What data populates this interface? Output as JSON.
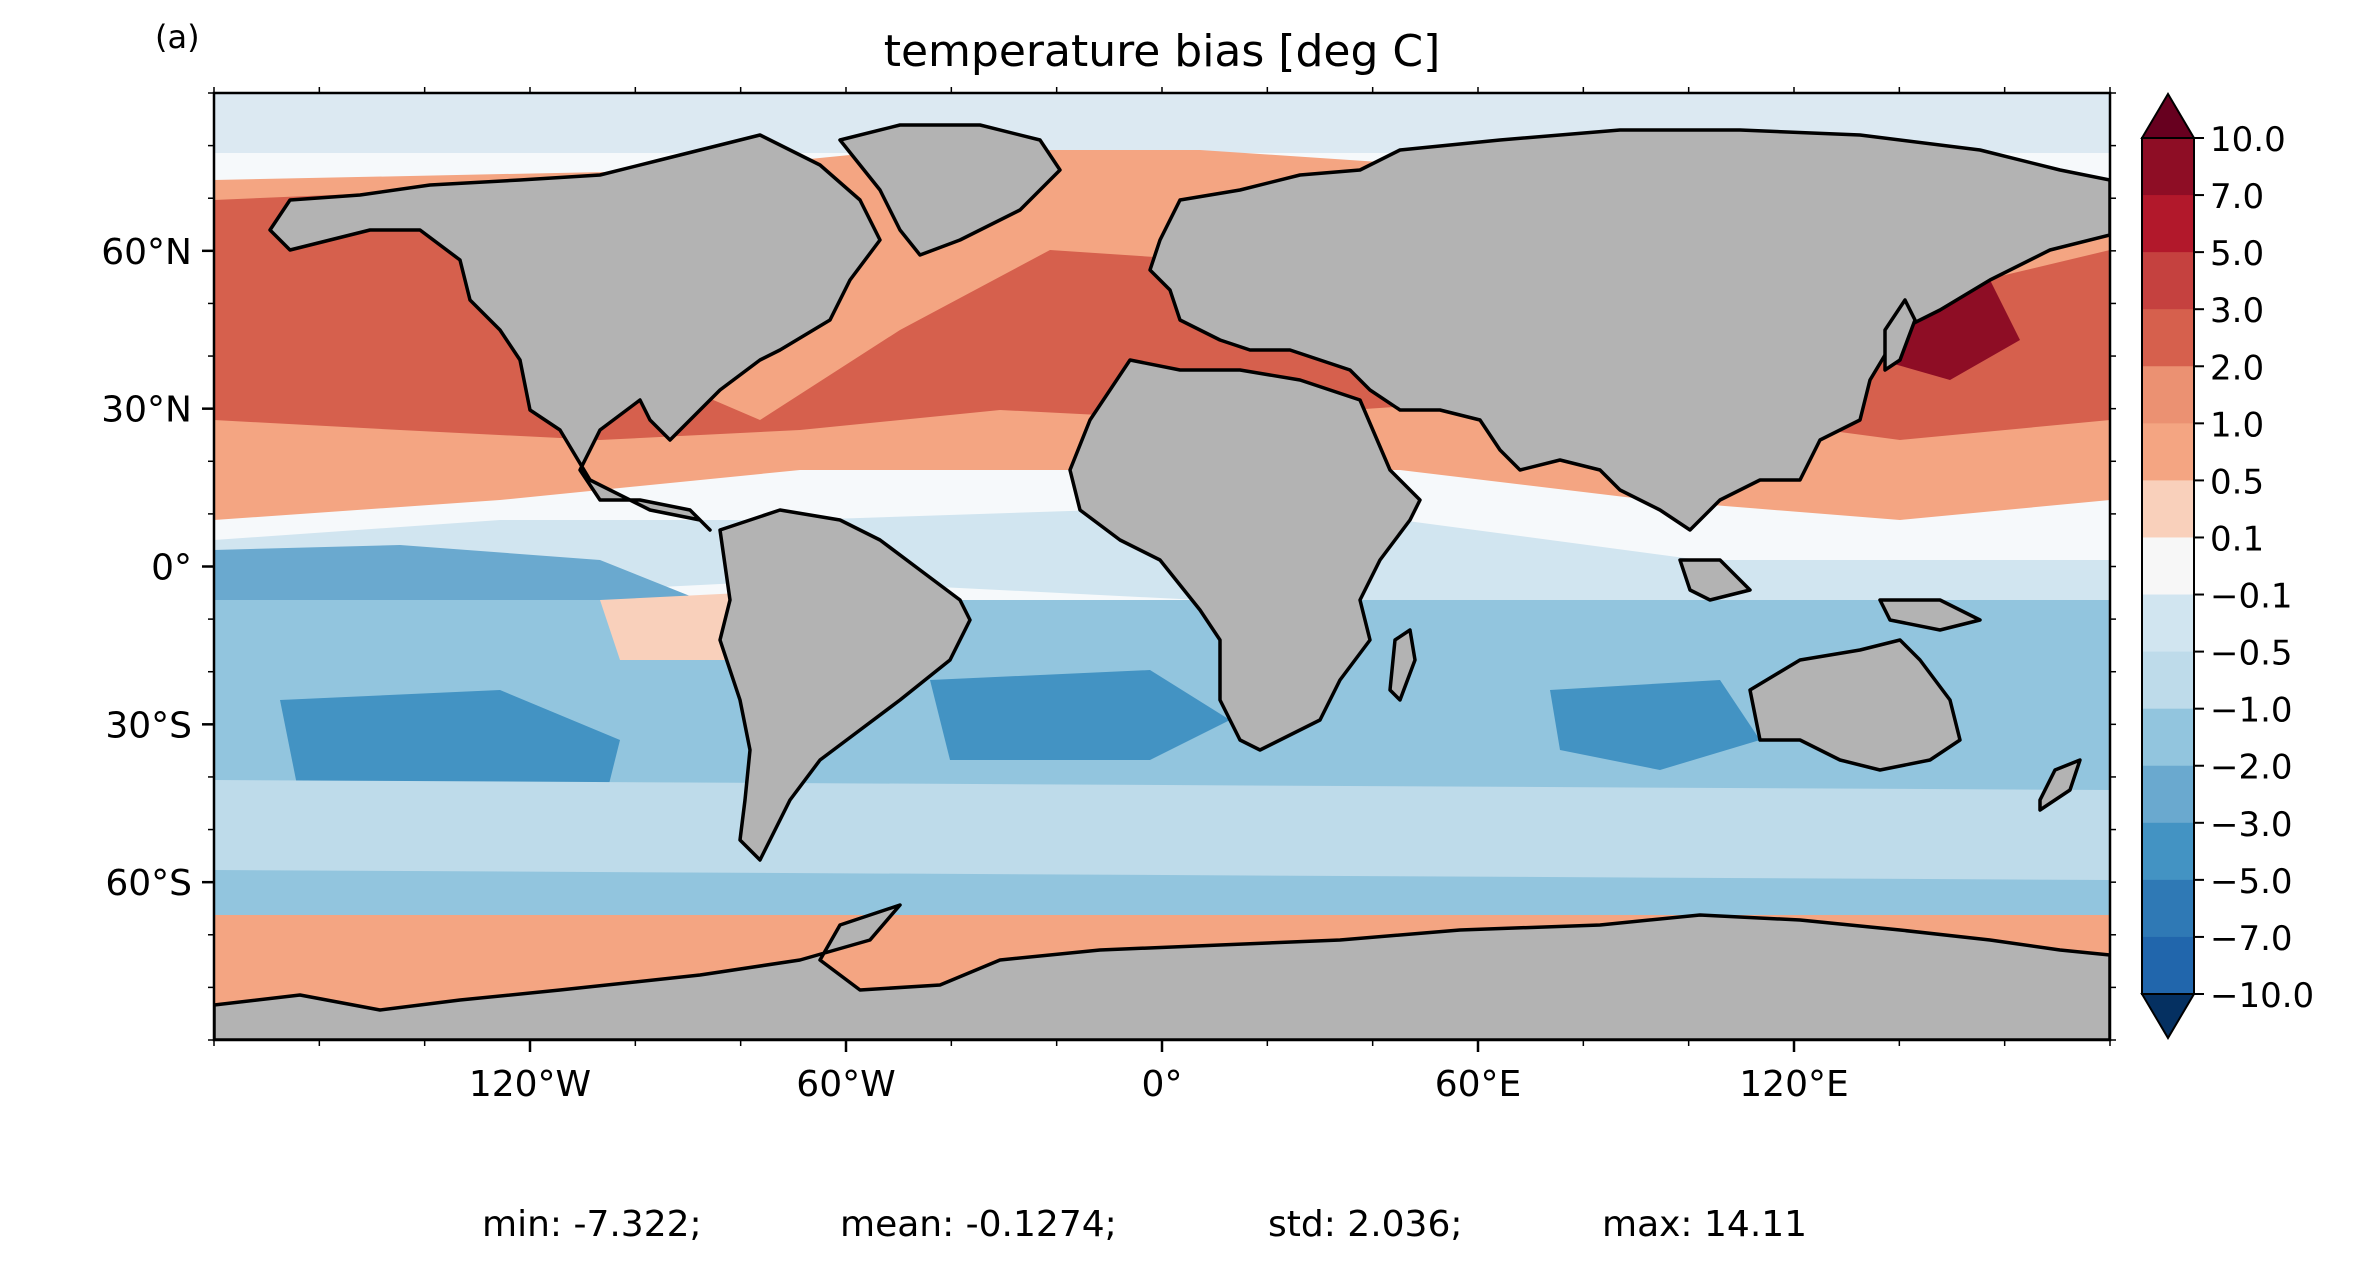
{
  "panel_label": "(a)",
  "title": "temperature bias [deg C]",
  "map": {
    "projection": "plate-carree",
    "lon_range": [
      -180,
      180
    ],
    "lat_range": [
      -90,
      90
    ],
    "land_color": "#b3b3b3",
    "coastline_color": "#000000",
    "x_ticks": [
      {
        "value": -120,
        "label": "120°W"
      },
      {
        "value": -60,
        "label": "60°W"
      },
      {
        "value": 0,
        "label": "0°"
      },
      {
        "value": 60,
        "label": "60°E"
      },
      {
        "value": 120,
        "label": "120°E"
      }
    ],
    "y_ticks": [
      {
        "value": 60,
        "label": "60°N"
      },
      {
        "value": 30,
        "label": "30°N"
      },
      {
        "value": 0,
        "label": "0°"
      },
      {
        "value": -30,
        "label": "30°S"
      },
      {
        "value": -60,
        "label": "60°S"
      }
    ]
  },
  "colorbar": {
    "extend": "both",
    "levels": [
      "10.0",
      "7.0",
      "5.0",
      "3.0",
      "2.0",
      "1.0",
      "0.5",
      "0.1",
      "−0.1",
      "−0.5",
      "−1.0",
      "−2.0",
      "−3.0",
      "−5.0",
      "−7.0",
      "−10.0"
    ],
    "colors": [
      "#67001f",
      "#8e0d25",
      "#b2182b",
      "#c5413f",
      "#d6604d",
      "#eb9172",
      "#f4a582",
      "#f9d0bb",
      "#f7f7f7",
      "#d1e5f0",
      "#bedbea",
      "#92c5de",
      "#6aa9cf",
      "#4393c3",
      "#2f79b5",
      "#2166ac",
      "#053061"
    ]
  },
  "stats": {
    "min": "min: -7.322;",
    "mean": "mean: -0.1274;",
    "std": "std: 2.036;",
    "max": "max: 14.11"
  }
}
